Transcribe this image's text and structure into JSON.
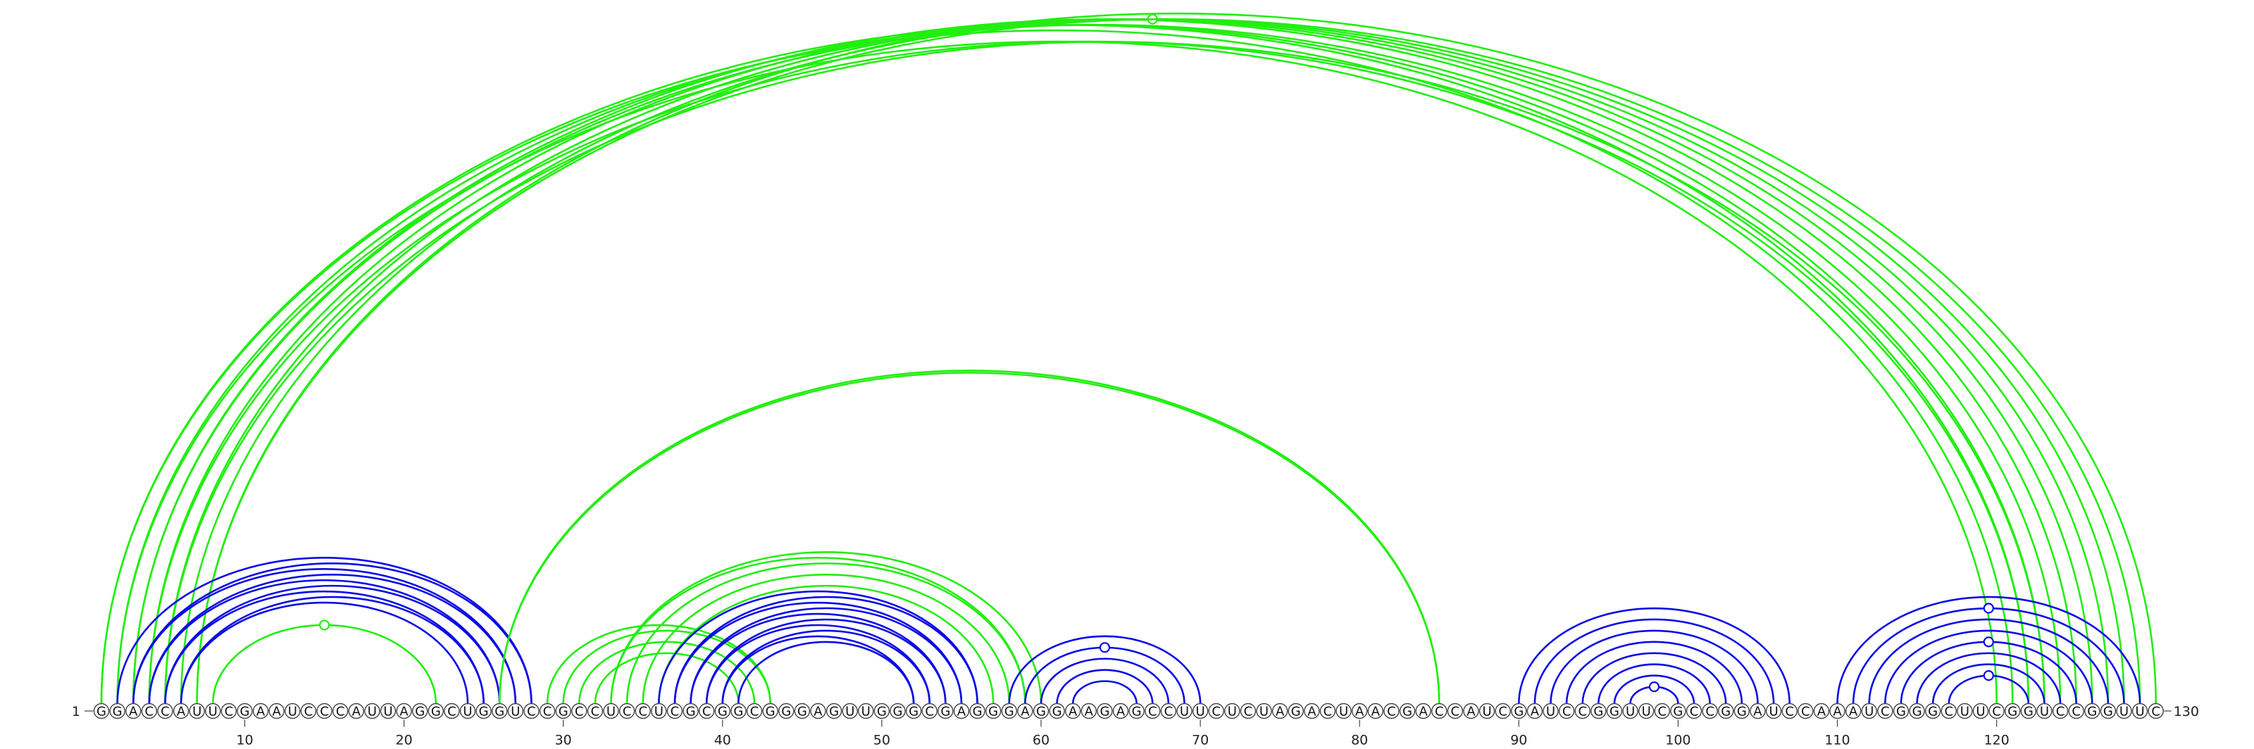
{
  "sequence": "GGACCAUUCGAAUCCCAUUAGGCUGGUCCGCCUCCUCGCGGCGGGAGUUGGGCGAGGGAGGAAGAGCCUUCUCUAGACUAACGACCAUCGAUCCGGUUCGCCGGAUCCAAAUCGGGCUUCGGUCCGGUUC",
  "start_label": "1",
  "end_label": "130",
  "ticks": [
    10,
    20,
    30,
    40,
    50,
    60,
    70,
    80,
    90,
    100,
    110,
    120
  ],
  "colors": {
    "blue": "#0a0ae6",
    "green": "#22ee11",
    "axis": "#444444"
  },
  "arcs": [
    {
      "i": 1,
      "j": 121,
      "color": "green"
    },
    {
      "i": 1,
      "j": 122,
      "color": "green"
    },
    {
      "i": 2,
      "j": 120,
      "color": "green"
    },
    {
      "i": 2,
      "j": 123,
      "color": "green"
    },
    {
      "i": 3,
      "j": 124,
      "color": "green"
    },
    {
      "i": 3,
      "j": 125,
      "color": "green"
    },
    {
      "i": 4,
      "j": 122,
      "color": "green"
    },
    {
      "i": 4,
      "j": 126,
      "color": "green"
    },
    {
      "i": 5,
      "j": 127,
      "color": "green"
    },
    {
      "i": 5,
      "j": 123,
      "color": "green"
    },
    {
      "i": 6,
      "j": 128,
      "color": "green",
      "marker": true
    },
    {
      "i": 7,
      "j": 129,
      "color": "green"
    },
    {
      "i": 7,
      "j": 130,
      "color": "green"
    },
    {
      "i": 8,
      "j": 22,
      "color": "green",
      "marker": true
    },
    {
      "i": 2,
      "j": 28,
      "color": "blue"
    },
    {
      "i": 3,
      "j": 28,
      "color": "blue"
    },
    {
      "i": 3,
      "j": 27,
      "color": "blue"
    },
    {
      "i": 4,
      "j": 27,
      "color": "blue"
    },
    {
      "i": 4,
      "j": 26,
      "color": "blue"
    },
    {
      "i": 5,
      "j": 26,
      "color": "blue"
    },
    {
      "i": 5,
      "j": 25,
      "color": "blue"
    },
    {
      "i": 6,
      "j": 25,
      "color": "blue"
    },
    {
      "i": 6,
      "j": 24,
      "color": "blue"
    },
    {
      "i": 26,
      "j": 85,
      "color": "green"
    },
    {
      "i": 26,
      "j": 85,
      "color": "green"
    },
    {
      "i": 29,
      "j": 43,
      "color": "green"
    },
    {
      "i": 30,
      "j": 43,
      "color": "green"
    },
    {
      "i": 31,
      "j": 42,
      "color": "green"
    },
    {
      "i": 32,
      "j": 41,
      "color": "green"
    },
    {
      "i": 33,
      "j": 60,
      "color": "green"
    },
    {
      "i": 33,
      "j": 59,
      "color": "green"
    },
    {
      "i": 34,
      "j": 59,
      "color": "green"
    },
    {
      "i": 35,
      "j": 58,
      "color": "green"
    },
    {
      "i": 36,
      "j": 57,
      "color": "green"
    },
    {
      "i": 36,
      "j": 56,
      "color": "blue"
    },
    {
      "i": 37,
      "j": 56,
      "color": "blue"
    },
    {
      "i": 37,
      "j": 55,
      "color": "blue"
    },
    {
      "i": 38,
      "j": 55,
      "color": "blue"
    },
    {
      "i": 38,
      "j": 54,
      "color": "blue"
    },
    {
      "i": 39,
      "j": 54,
      "color": "blue"
    },
    {
      "i": 39,
      "j": 53,
      "color": "blue"
    },
    {
      "i": 40,
      "j": 53,
      "color": "blue"
    },
    {
      "i": 40,
      "j": 52,
      "color": "blue"
    },
    {
      "i": 41,
      "j": 52,
      "color": "blue"
    },
    {
      "i": 58,
      "j": 70,
      "color": "blue"
    },
    {
      "i": 59,
      "j": 69,
      "color": "blue",
      "marker": true
    },
    {
      "i": 60,
      "j": 68,
      "color": "blue"
    },
    {
      "i": 61,
      "j": 67,
      "color": "blue"
    },
    {
      "i": 62,
      "j": 66,
      "color": "blue"
    },
    {
      "i": 90,
      "j": 107,
      "color": "blue"
    },
    {
      "i": 91,
      "j": 106,
      "color": "blue"
    },
    {
      "i": 92,
      "j": 105,
      "color": "blue"
    },
    {
      "i": 93,
      "j": 104,
      "color": "blue"
    },
    {
      "i": 94,
      "j": 103,
      "color": "blue"
    },
    {
      "i": 95,
      "j": 102,
      "color": "blue"
    },
    {
      "i": 96,
      "j": 101,
      "color": "blue"
    },
    {
      "i": 97,
      "j": 100,
      "color": "blue",
      "marker": true
    },
    {
      "i": 110,
      "j": 129,
      "color": "blue"
    },
    {
      "i": 111,
      "j": 128,
      "color": "blue",
      "marker": true
    },
    {
      "i": 112,
      "j": 127,
      "color": "blue"
    },
    {
      "i": 113,
      "j": 126,
      "color": "blue"
    },
    {
      "i": 114,
      "j": 125,
      "color": "blue",
      "marker": true
    },
    {
      "i": 115,
      "j": 124,
      "color": "blue"
    },
    {
      "i": 116,
      "j": 123,
      "color": "blue"
    },
    {
      "i": 117,
      "j": 122,
      "color": "blue",
      "marker": true
    }
  ]
}
